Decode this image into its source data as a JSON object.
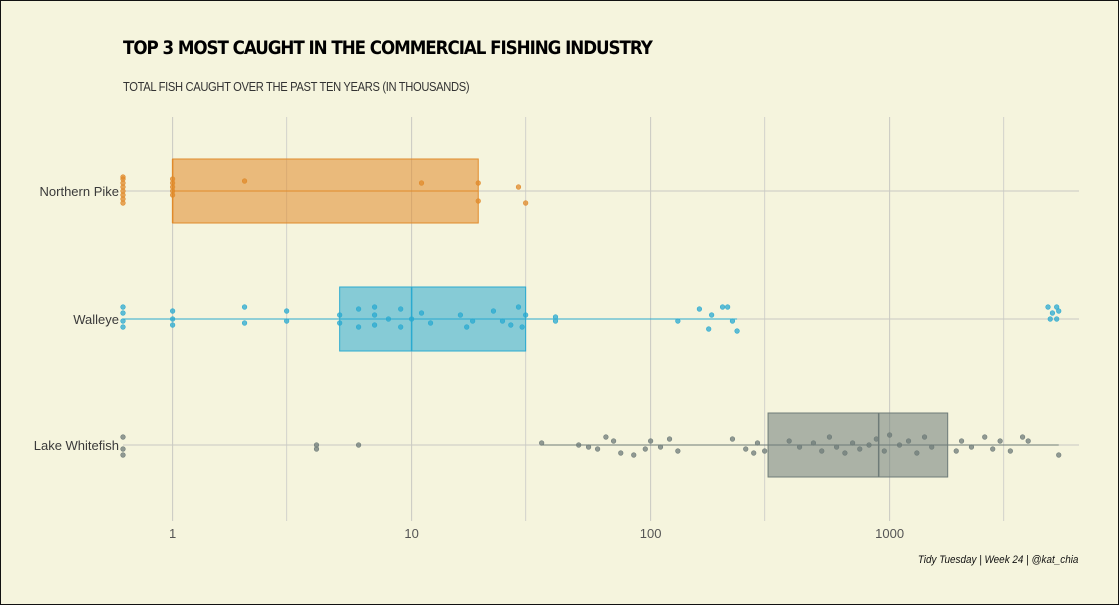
{
  "title": "TOP 3 MOST CAUGHT IN THE COMMERCIAL FISHING INDUSTRY",
  "subtitle": "TOTAL FISH CAUGHT OVER THE PAST TEN YEARS (IN THOUSANDS)",
  "caption": "Tidy Tuesday | Week 24 | @kat_chia",
  "chart_data": {
    "type": "boxplot",
    "x_scale": "log10",
    "xlim": [
      0.62,
      6200
    ],
    "x_ticks": [
      {
        "value": 1,
        "label": "1"
      },
      {
        "value": 10,
        "label": "10"
      },
      {
        "value": 100,
        "label": "100"
      },
      {
        "value": 1000,
        "label": "1000"
      }
    ],
    "x_minor_gridlines": [
      3,
      30,
      300,
      3000
    ],
    "grid": true,
    "legend": "none",
    "categories": [
      "Northern Pike",
      "Walleye",
      "Lake Whitefish"
    ],
    "series": [
      {
        "category": "Northern Pike",
        "color": "#e08a2a",
        "box": {
          "min": 1,
          "q1": 1,
          "median": 1,
          "q3": 19,
          "max": 19
        },
        "points": [
          {
            "x": 0.62,
            "dy": -0.3
          },
          {
            "x": 0.62,
            "dy": -0.2
          },
          {
            "x": 0.62,
            "dy": -0.1
          },
          {
            "x": 0.62,
            "dy": 0.0
          },
          {
            "x": 0.62,
            "dy": 0.1
          },
          {
            "x": 0.62,
            "dy": 0.2
          },
          {
            "x": 0.62,
            "dy": 0.3
          },
          {
            "x": 0.62,
            "dy": -0.35
          },
          {
            "x": 1,
            "dy": -0.3
          },
          {
            "x": 1,
            "dy": -0.2
          },
          {
            "x": 1,
            "dy": -0.1
          },
          {
            "x": 1,
            "dy": 0.0
          },
          {
            "x": 1,
            "dy": 0.1
          },
          {
            "x": 2,
            "dy": -0.25
          },
          {
            "x": 11,
            "dy": -0.2
          },
          {
            "x": 19,
            "dy": -0.2
          },
          {
            "x": 19,
            "dy": 0.25
          },
          {
            "x": 28,
            "dy": -0.1
          },
          {
            "x": 30,
            "dy": 0.3
          }
        ]
      },
      {
        "category": "Walleye",
        "color": "#2aaad0",
        "box": {
          "min": 0.62,
          "q1": 5,
          "median": 10,
          "q3": 30,
          "max": 230
        },
        "points": [
          {
            "x": 0.62,
            "dy": -0.3
          },
          {
            "x": 0.62,
            "dy": -0.15
          },
          {
            "x": 0.62,
            "dy": 0.05
          },
          {
            "x": 0.62,
            "dy": 0.2
          },
          {
            "x": 1,
            "dy": -0.2
          },
          {
            "x": 1,
            "dy": 0.0
          },
          {
            "x": 1,
            "dy": 0.15
          },
          {
            "x": 2,
            "dy": -0.3
          },
          {
            "x": 2,
            "dy": 0.1
          },
          {
            "x": 3,
            "dy": -0.2
          },
          {
            "x": 3,
            "dy": 0.05
          },
          {
            "x": 5,
            "dy": -0.1
          },
          {
            "x": 5,
            "dy": 0.1
          },
          {
            "x": 6,
            "dy": -0.25
          },
          {
            "x": 6,
            "dy": 0.2
          },
          {
            "x": 7,
            "dy": -0.3
          },
          {
            "x": 7,
            "dy": -0.1
          },
          {
            "x": 7,
            "dy": 0.15
          },
          {
            "x": 8,
            "dy": 0.0
          },
          {
            "x": 9,
            "dy": -0.25
          },
          {
            "x": 9,
            "dy": 0.2
          },
          {
            "x": 10,
            "dy": 0.0
          },
          {
            "x": 11,
            "dy": -0.15
          },
          {
            "x": 12,
            "dy": 0.1
          },
          {
            "x": 16,
            "dy": -0.1
          },
          {
            "x": 17,
            "dy": 0.2
          },
          {
            "x": 18,
            "dy": 0.05
          },
          {
            "x": 22,
            "dy": -0.2
          },
          {
            "x": 24,
            "dy": 0.05
          },
          {
            "x": 26,
            "dy": 0.15
          },
          {
            "x": 28,
            "dy": -0.3
          },
          {
            "x": 29,
            "dy": 0.2
          },
          {
            "x": 30,
            "dy": -0.1
          },
          {
            "x": 40,
            "dy": -0.05
          },
          {
            "x": 40,
            "dy": 0.05
          },
          {
            "x": 130,
            "dy": 0.05
          },
          {
            "x": 160,
            "dy": -0.25
          },
          {
            "x": 175,
            "dy": 0.25
          },
          {
            "x": 180,
            "dy": -0.1
          },
          {
            "x": 200,
            "dy": -0.3
          },
          {
            "x": 210,
            "dy": -0.3
          },
          {
            "x": 220,
            "dy": 0.05
          },
          {
            "x": 230,
            "dy": 0.3
          },
          {
            "x": 4600,
            "dy": -0.3
          },
          {
            "x": 4700,
            "dy": 0.0
          },
          {
            "x": 4800,
            "dy": -0.15
          },
          {
            "x": 5000,
            "dy": -0.3
          },
          {
            "x": 5000,
            "dy": 0.0
          },
          {
            "x": 5100,
            "dy": -0.2
          }
        ]
      },
      {
        "category": "Lake Whitefish",
        "color": "#6e7b78",
        "box": {
          "min": 35,
          "q1": 310,
          "median": 900,
          "q3": 1750,
          "max": 5100
        },
        "points": [
          {
            "x": 0.62,
            "dy": -0.2
          },
          {
            "x": 0.62,
            "dy": 0.1
          },
          {
            "x": 0.62,
            "dy": 0.25
          },
          {
            "x": 4,
            "dy": 0.0
          },
          {
            "x": 4,
            "dy": 0.1
          },
          {
            "x": 6,
            "dy": 0.0
          },
          {
            "x": 35,
            "dy": -0.05
          },
          {
            "x": 50,
            "dy": 0.0
          },
          {
            "x": 55,
            "dy": 0.05
          },
          {
            "x": 60,
            "dy": 0.1
          },
          {
            "x": 65,
            "dy": -0.2
          },
          {
            "x": 70,
            "dy": -0.1
          },
          {
            "x": 75,
            "dy": 0.2
          },
          {
            "x": 85,
            "dy": 0.25
          },
          {
            "x": 95,
            "dy": 0.1
          },
          {
            "x": 100,
            "dy": -0.1
          },
          {
            "x": 110,
            "dy": 0.05
          },
          {
            "x": 120,
            "dy": -0.15
          },
          {
            "x": 130,
            "dy": 0.15
          },
          {
            "x": 220,
            "dy": -0.15
          },
          {
            "x": 250,
            "dy": 0.1
          },
          {
            "x": 270,
            "dy": 0.2
          },
          {
            "x": 280,
            "dy": -0.05
          },
          {
            "x": 300,
            "dy": 0.15
          },
          {
            "x": 380,
            "dy": -0.1
          },
          {
            "x": 420,
            "dy": 0.05
          },
          {
            "x": 480,
            "dy": -0.05
          },
          {
            "x": 520,
            "dy": 0.15
          },
          {
            "x": 560,
            "dy": -0.2
          },
          {
            "x": 600,
            "dy": 0.05
          },
          {
            "x": 650,
            "dy": 0.2
          },
          {
            "x": 700,
            "dy": -0.05
          },
          {
            "x": 750,
            "dy": 0.1
          },
          {
            "x": 820,
            "dy": 0.0
          },
          {
            "x": 880,
            "dy": -0.15
          },
          {
            "x": 950,
            "dy": 0.15
          },
          {
            "x": 1000,
            "dy": -0.25
          },
          {
            "x": 1100,
            "dy": 0.0
          },
          {
            "x": 1200,
            "dy": -0.1
          },
          {
            "x": 1300,
            "dy": 0.2
          },
          {
            "x": 1400,
            "dy": -0.2
          },
          {
            "x": 1500,
            "dy": 0.05
          },
          {
            "x": 1900,
            "dy": 0.15
          },
          {
            "x": 2000,
            "dy": -0.1
          },
          {
            "x": 2200,
            "dy": 0.05
          },
          {
            "x": 2500,
            "dy": -0.2
          },
          {
            "x": 2700,
            "dy": 0.1
          },
          {
            "x": 2900,
            "dy": -0.1
          },
          {
            "x": 3200,
            "dy": 0.15
          },
          {
            "x": 3600,
            "dy": -0.2
          },
          {
            "x": 3800,
            "dy": -0.1
          },
          {
            "x": 5100,
            "dy": 0.25
          }
        ]
      }
    ]
  }
}
